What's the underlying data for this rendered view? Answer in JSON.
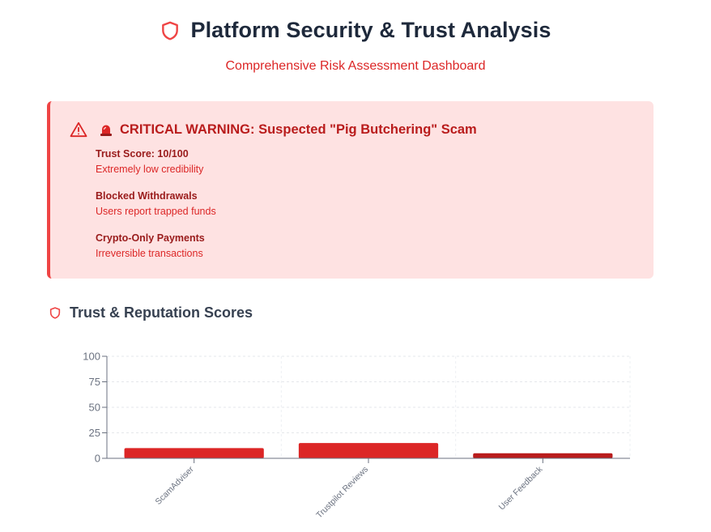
{
  "header": {
    "title": "Platform Security & Trust Analysis",
    "subtitle": "Comprehensive Risk Assessment Dashboard",
    "icon": "shield-icon"
  },
  "warning": {
    "icon": "warning-triangle-icon",
    "siren_icon": "siren-icon",
    "title": "CRITICAL WARNING: Suspected \"Pig Butchering\" Scam",
    "items": [
      {
        "label": "Trust Score: 10/100",
        "desc": "Extremely low credibility"
      },
      {
        "label": "Blocked Withdrawals",
        "desc": "Users report trapped funds"
      },
      {
        "label": "Crypto-Only Payments",
        "desc": "Irreversible transactions"
      }
    ]
  },
  "section": {
    "title": "Trust & Reputation Scores",
    "icon": "shield-icon"
  },
  "colors": {
    "accent": "#dc2626",
    "warning_bg": "#fee2e2",
    "warning_border": "#ef4444",
    "bar_dark": "#b91c1c"
  },
  "chart_data": {
    "type": "bar",
    "categories": [
      "ScamAdviser",
      "Trustpilot Reviews",
      "User Feedback"
    ],
    "values": [
      10,
      15,
      5
    ],
    "ylim": [
      0,
      100
    ],
    "yticks": [
      0,
      25,
      50,
      75,
      100
    ],
    "grid": true,
    "bar_colors": [
      "#dc2626",
      "#dc2626",
      "#b91c1c"
    ]
  }
}
